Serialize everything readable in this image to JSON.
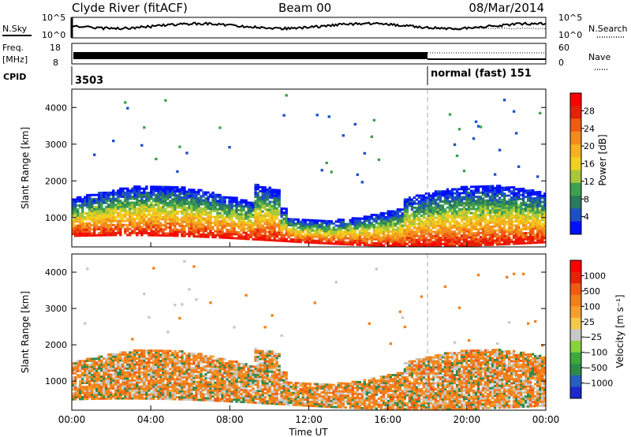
{
  "header": {
    "station": "Clyde River (fitACF)",
    "beam": "Beam 00",
    "date": "08/Mar/2014"
  },
  "panels": {
    "nsky": {
      "label": "N.Sky",
      "right_label": "N.Search",
      "left_ticks": [
        "10^5",
        "10^0"
      ],
      "right_ticks": [
        "10^5",
        "10^0"
      ]
    },
    "freq": {
      "label": "Freq.",
      "unit": "[MHz]",
      "right_label": "Nave",
      "left_ticks": [
        "18",
        "8"
      ],
      "right_ticks": [
        "60",
        "0"
      ]
    },
    "cpid": {
      "label": "CPID",
      "first": "3503",
      "second": "normal (fast) 151"
    }
  },
  "colors": {
    "black": "#000000",
    "grey": "#c8c8c8"
  },
  "chart_data": [
    {
      "type": "heatmap",
      "quantity": "Power",
      "xlabel": "Time UT",
      "ylabel": "Slant Range [km]",
      "xlim": [
        "00:00",
        "24:00"
      ],
      "ylim": [
        200,
        4500
      ],
      "y_ticks": [
        "1000",
        "2000",
        "3000",
        "4000"
      ],
      "colorbar": {
        "label": "Power [dB]",
        "ticks": [
          "4",
          "8",
          "12",
          "16",
          "20",
          "24",
          "28"
        ],
        "colors": [
          "#0010ff",
          "#1c4fc8",
          "#2a7a5c",
          "#3ea050",
          "#a6c83a",
          "#f0d020",
          "#f5b21e",
          "#f28c1c",
          "#f05a14",
          "#e82008",
          "#ff0000"
        ]
      },
      "dominant_region_km": [
        400,
        1600
      ],
      "vertical_marker_ut": "18:00"
    },
    {
      "type": "heatmap",
      "quantity": "Velocity",
      "xlabel": "Time UT",
      "ylabel": "Slant Range [km]",
      "xlim": [
        "00:00",
        "24:00"
      ],
      "ylim": [
        200,
        4500
      ],
      "y_ticks": [
        "1000",
        "2000",
        "3000",
        "4000"
      ],
      "colorbar": {
        "label": "Velocity [m s⁻¹]",
        "ticks": [
          "1000",
          "500",
          "100",
          "25",
          "−25",
          "−100",
          "−500",
          "−1000"
        ],
        "colors": [
          "#1c2ac8",
          "#2660c0",
          "#2f8a4a",
          "#3ea83c",
          "#88d23e",
          "#c8c8c8",
          "#f5c84a",
          "#f5a02e",
          "#f28019",
          "#f05a14",
          "#e82008",
          "#ff0000"
        ]
      },
      "vertical_marker_ut": "18:00"
    }
  ],
  "x_axis": {
    "ticks": [
      "00:00",
      "04:00",
      "08:00",
      "12:00",
      "16:00",
      "20:00",
      "00:00"
    ],
    "label": "Time UT"
  }
}
